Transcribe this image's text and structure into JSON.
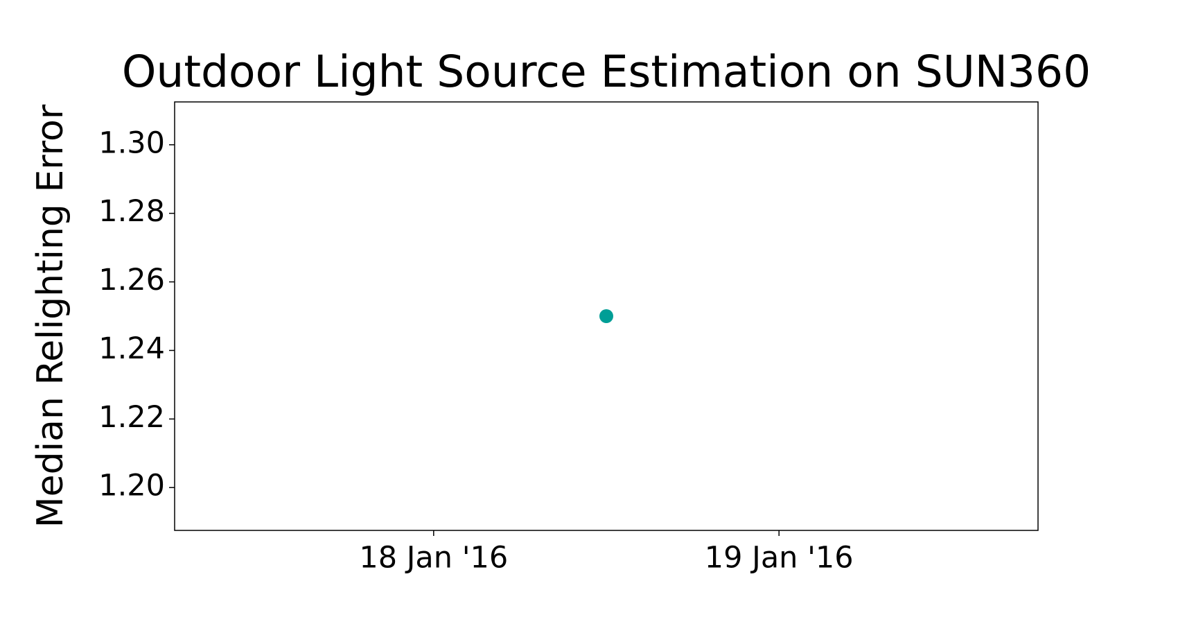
{
  "chart_data": {
    "type": "scatter",
    "title": "Outdoor Light Source Estimation on SUN360",
    "y_label": "Median Relighting Error",
    "series": [
      {
        "x": [
          18.5
        ],
        "values": [
          1.25
        ],
        "color": "#009e96"
      }
    ],
    "xlim": [
      17.25,
      19.75
    ],
    "xticks": [
      {
        "value": 18,
        "label": "18 Jan '16"
      },
      {
        "value": 19,
        "label": "19 Jan '16"
      }
    ],
    "ylim": [
      1.1875,
      1.3125
    ],
    "yticks": [
      {
        "value": 1.2,
        "label": "1.20"
      },
      1.22,
      1.24,
      1.26,
      1.28,
      {
        "value": 1.3,
        "label": "1.30"
      }
    ],
    "grid": false
  }
}
